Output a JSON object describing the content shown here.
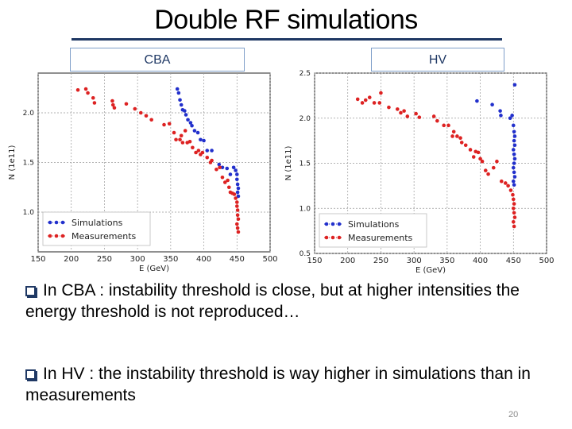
{
  "slide": {
    "title": "Double RF simulations",
    "labels": {
      "left": "CBA",
      "right": "HV"
    },
    "bullets": [
      {
        "text": "In CBA : instability threshold is close, but at higher intensities the energy threshold is not reproduced…"
      },
      {
        "text": "In HV : the instability threshold is way higher in simulations than in measurements"
      }
    ],
    "page_number": "20"
  },
  "colors": {
    "simulations": "#2230cc",
    "measurements": "#dd2222",
    "title_rule": "#1f3864"
  },
  "chart_data": [
    {
      "type": "scatter",
      "title": "",
      "xlabel": "E (GeV)",
      "ylabel": "N (1e11)",
      "xlim": [
        150,
        500
      ],
      "ylim": [
        0.6,
        2.4
      ],
      "x_ticks": [
        "150",
        "200",
        "250",
        "300",
        "350",
        "400",
        "450",
        "500"
      ],
      "y_ticks": [
        "1.0",
        "1.5",
        "2.0"
      ],
      "grid": true,
      "legend_position": "bottom-left",
      "series": [
        {
          "name": "Simulations",
          "color": "#2230cc",
          "points": [
            [
              360,
              2.24
            ],
            [
              362,
              2.2
            ],
            [
              364,
              2.13
            ],
            [
              366,
              2.08
            ],
            [
              368,
              2.03
            ],
            [
              371,
              2.02
            ],
            [
              373,
              1.98
            ],
            [
              376,
              1.93
            ],
            [
              380,
              1.9
            ],
            [
              382,
              1.87
            ],
            [
              386,
              1.82
            ],
            [
              391,
              1.8
            ],
            [
              395,
              1.73
            ],
            [
              400,
              1.72
            ],
            [
              405,
              1.62
            ],
            [
              412,
              1.62
            ],
            [
              423,
              1.48
            ],
            [
              428,
              1.45
            ],
            [
              435,
              1.44
            ],
            [
              440,
              1.38
            ],
            [
              445,
              1.45
            ],
            [
              448,
              1.42
            ],
            [
              450,
              1.38
            ],
            [
              450,
              1.33
            ],
            [
              451,
              1.28
            ],
            [
              452,
              1.24
            ],
            [
              451,
              1.2
            ],
            [
              452,
              1.16
            ]
          ]
        },
        {
          "name": "Measurements",
          "color": "#dd2222",
          "points": [
            [
              210,
              2.23
            ],
            [
              222,
              2.24
            ],
            [
              225,
              2.2
            ],
            [
              233,
              2.15
            ],
            [
              235,
              2.1
            ],
            [
              262,
              2.12
            ],
            [
              263,
              2.08
            ],
            [
              265,
              2.05
            ],
            [
              283,
              2.09
            ],
            [
              296,
              2.04
            ],
            [
              305,
              2.0
            ],
            [
              313,
              1.97
            ],
            [
              321,
              1.93
            ],
            [
              340,
              1.88
            ],
            [
              348,
              1.89
            ],
            [
              355,
              1.8
            ],
            [
              358,
              1.73
            ],
            [
              364,
              1.73
            ],
            [
              366,
              1.77
            ],
            [
              368,
              1.7
            ],
            [
              372,
              1.82
            ],
            [
              375,
              1.7
            ],
            [
              379,
              1.71
            ],
            [
              383,
              1.65
            ],
            [
              388,
              1.6
            ],
            [
              392,
              1.62
            ],
            [
              395,
              1.58
            ],
            [
              398,
              1.6
            ],
            [
              405,
              1.55
            ],
            [
              410,
              1.5
            ],
            [
              412,
              1.52
            ],
            [
              419,
              1.43
            ],
            [
              424,
              1.45
            ],
            [
              428,
              1.35
            ],
            [
              432,
              1.3
            ],
            [
              436,
              1.32
            ],
            [
              438,
              1.25
            ],
            [
              440,
              1.2
            ],
            [
              443,
              1.19
            ],
            [
              446,
              1.18
            ],
            [
              448,
              1.14
            ],
            [
              450,
              1.1
            ],
            [
              450,
              1.06
            ],
            [
              451,
              1.02
            ],
            [
              451,
              0.97
            ],
            [
              452,
              0.93
            ],
            [
              450,
              0.88
            ],
            [
              451,
              0.84
            ],
            [
              452,
              0.8
            ]
          ]
        }
      ]
    },
    {
      "type": "scatter",
      "title": "",
      "xlabel": "E (GeV)",
      "ylabel": "N (1e11)",
      "xlim": [
        150,
        500
      ],
      "ylim": [
        0.5,
        2.5
      ],
      "x_ticks": [
        "150",
        "200",
        "250",
        "300",
        "350",
        "400",
        "450",
        "500"
      ],
      "y_ticks": [
        "0.5",
        "1.0",
        "1.5",
        "2.0",
        "2.5"
      ],
      "grid": true,
      "legend_position": "bottom-left",
      "series": [
        {
          "name": "Simulations",
          "color": "#2230cc",
          "points": [
            [
              452,
              2.37
            ],
            [
              395,
              2.19
            ],
            [
              418,
              2.15
            ],
            [
              430,
              2.08
            ],
            [
              431,
              2.03
            ],
            [
              445,
              2.0
            ],
            [
              448,
              2.03
            ],
            [
              450,
              1.92
            ],
            [
              451,
              1.85
            ],
            [
              452,
              1.8
            ],
            [
              451,
              1.75
            ],
            [
              452,
              1.7
            ],
            [
              450,
              1.65
            ],
            [
              451,
              1.6
            ],
            [
              452,
              1.55
            ],
            [
              451,
              1.5
            ],
            [
              450,
              1.45
            ],
            [
              451,
              1.4
            ],
            [
              452,
              1.35
            ],
            [
              450,
              1.3
            ],
            [
              451,
              1.26
            ]
          ]
        },
        {
          "name": "Measurements",
          "color": "#dd2222",
          "points": [
            [
              215,
              2.21
            ],
            [
              222,
              2.17
            ],
            [
              227,
              2.2
            ],
            [
              233,
              2.23
            ],
            [
              240,
              2.17
            ],
            [
              248,
              2.17
            ],
            [
              250,
              2.28
            ],
            [
              262,
              2.12
            ],
            [
              275,
              2.1
            ],
            [
              280,
              2.06
            ],
            [
              285,
              2.08
            ],
            [
              290,
              2.02
            ],
            [
              303,
              2.05
            ],
            [
              308,
              2.01
            ],
            [
              330,
              2.02
            ],
            [
              335,
              1.97
            ],
            [
              345,
              1.92
            ],
            [
              352,
              1.92
            ],
            [
              358,
              1.8
            ],
            [
              360,
              1.85
            ],
            [
              365,
              1.8
            ],
            [
              370,
              1.78
            ],
            [
              372,
              1.73
            ],
            [
              378,
              1.7
            ],
            [
              385,
              1.65
            ],
            [
              390,
              1.57
            ],
            [
              393,
              1.63
            ],
            [
              397,
              1.62
            ],
            [
              400,
              1.55
            ],
            [
              403,
              1.52
            ],
            [
              408,
              1.42
            ],
            [
              412,
              1.38
            ],
            [
              420,
              1.45
            ],
            [
              425,
              1.52
            ],
            [
              432,
              1.3
            ],
            [
              438,
              1.28
            ],
            [
              442,
              1.25
            ],
            [
              446,
              1.2
            ],
            [
              449,
              1.15
            ],
            [
              450,
              1.1
            ],
            [
              451,
              1.05
            ],
            [
              450,
              1.0
            ],
            [
              451,
              0.95
            ],
            [
              452,
              0.9
            ],
            [
              450,
              0.85
            ],
            [
              451,
              0.8
            ]
          ]
        }
      ]
    }
  ]
}
